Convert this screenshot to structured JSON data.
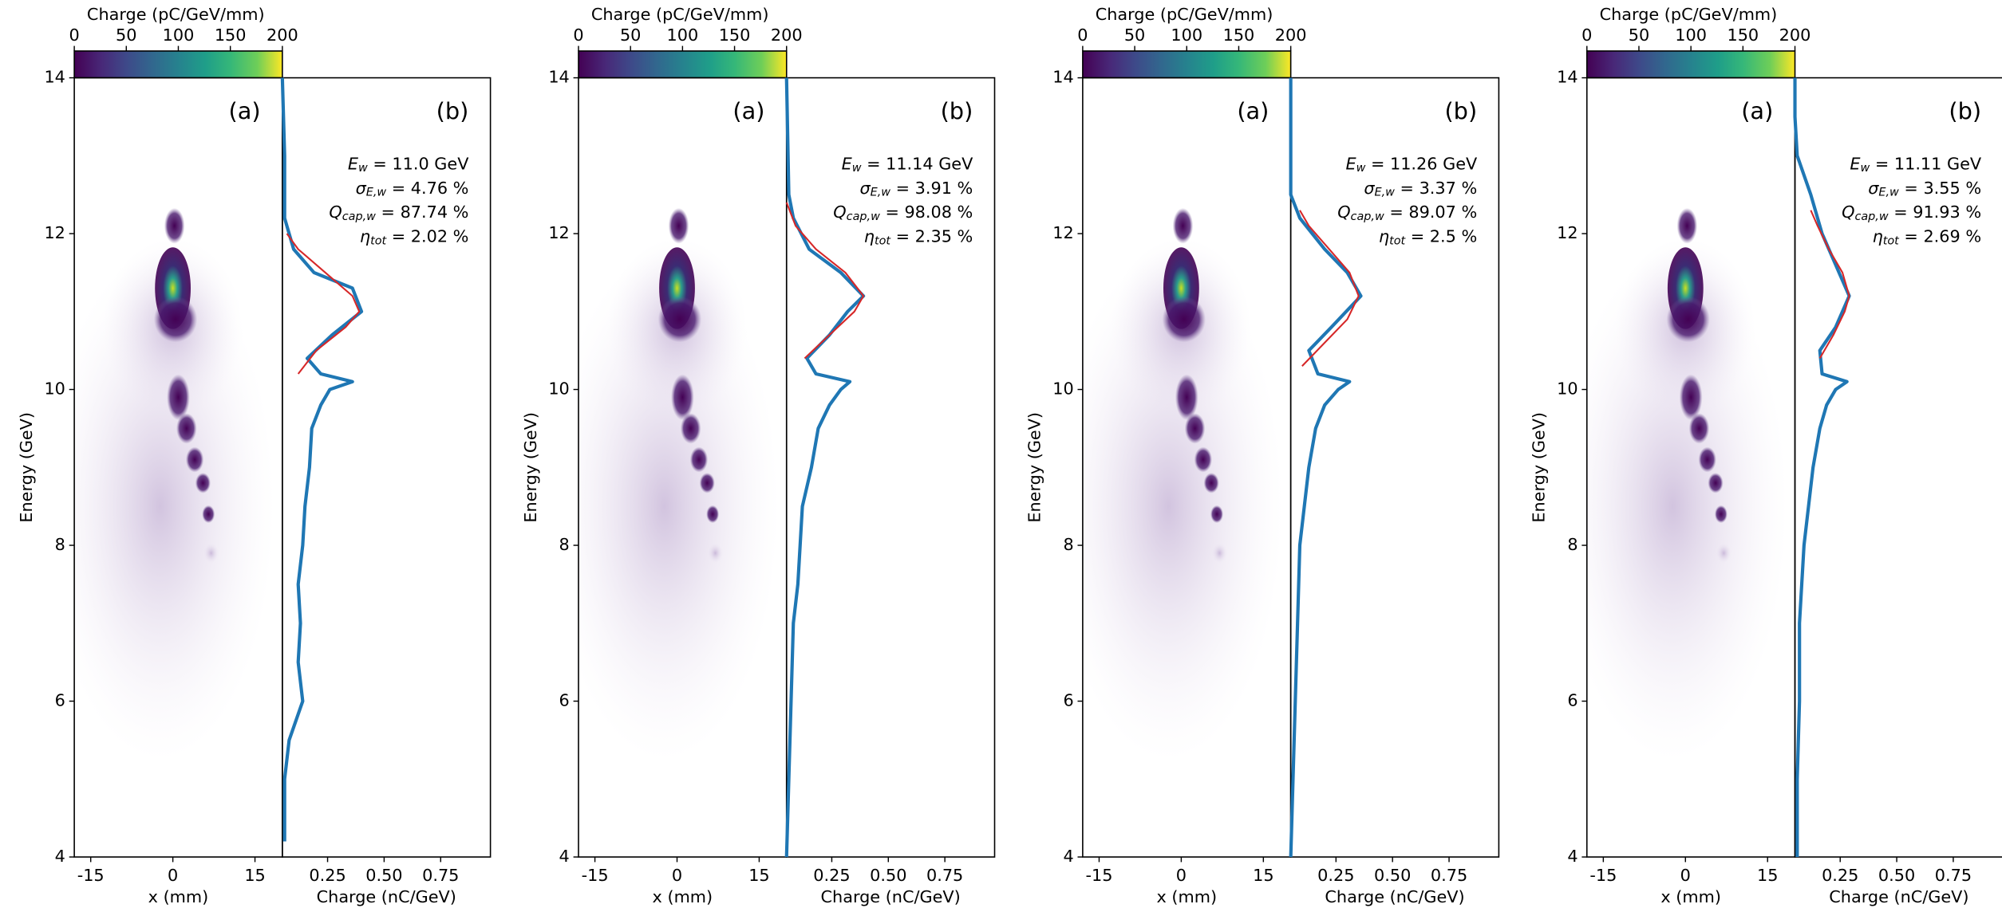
{
  "chart_data": [
    {
      "type": "line",
      "colorbar": {
        "label": "Charge (pC/GeV/mm)",
        "lim": [
          0,
          200
        ],
        "ticks": [
          0,
          50,
          100,
          150,
          200
        ]
      },
      "image": {
        "label": "(a)",
        "xlabel": "x (mm)",
        "xlim": [
          -18,
          20
        ],
        "xticks": [
          -15,
          0,
          15
        ],
        "ylabel": "Energy (GeV)",
        "ylim": [
          4,
          14
        ],
        "yticks": [
          4,
          6,
          8,
          10,
          12,
          14
        ]
      },
      "spectrum": {
        "label": "(b)",
        "xlabel": "Charge (nC/GeV)",
        "xlim": [
          0.05,
          0.97
        ],
        "ylim": [
          4,
          14
        ],
        "xticks": [
          {
            "value": 0.25,
            "label": "0.25"
          },
          {
            "value": 0.5,
            "label": "0.50"
          },
          {
            "value": 0.75,
            "label": "0.75"
          }
        ],
        "series": [
          {
            "color": "#1f77b4",
            "x": [
              4.2,
              5,
              5.5,
              6,
              6.5,
              7,
              7.5,
              8,
              8.5,
              9,
              9.5,
              9.8,
              10,
              10.1,
              10.2,
              10.4,
              10.7,
              11,
              11.3,
              11.5,
              11.8,
              12.2,
              13,
              14
            ],
            "values": [
              0.06,
              0.06,
              0.08,
              0.14,
              0.12,
              0.13,
              0.12,
              0.14,
              0.15,
              0.17,
              0.18,
              0.22,
              0.26,
              0.36,
              0.22,
              0.16,
              0.27,
              0.4,
              0.36,
              0.19,
              0.1,
              0.06,
              0.06,
              0.05
            ]
          },
          {
            "color": "#d62728",
            "x": [
              10.2,
              10.5,
              10.8,
              11,
              11.2,
              11.5,
              11.8,
              12
            ],
            "values": [
              0.12,
              0.2,
              0.33,
              0.39,
              0.36,
              0.24,
              0.12,
              0.07
            ]
          }
        ],
        "annotations": [
          {
            "symbol": "E",
            "sub": "w",
            "text": " = 11.0 GeV"
          },
          {
            "symbol": "σ",
            "sub": "E,w",
            "text": " = 4.76 %"
          },
          {
            "symbol": "Q",
            "sub": "cap,w",
            "text": " = 87.74 %"
          },
          {
            "symbol": "η",
            "sub": "tot",
            "text": " = 2.02 %"
          }
        ]
      }
    },
    {
      "type": "line",
      "colorbar": {
        "label": "Charge (pC/GeV/mm)",
        "lim": [
          0,
          200
        ],
        "ticks": [
          0,
          50,
          100,
          150,
          200
        ]
      },
      "image": {
        "label": "(a)",
        "xlabel": "x (mm)",
        "xlim": [
          -18,
          20
        ],
        "xticks": [
          -15,
          0,
          15
        ],
        "ylabel": "Energy (GeV)",
        "ylim": [
          4,
          14
        ],
        "yticks": [
          4,
          6,
          8,
          10,
          12,
          14
        ]
      },
      "spectrum": {
        "label": "(b)",
        "xlabel": "Charge (nC/GeV)",
        "xlim": [
          0.05,
          0.97
        ],
        "ylim": [
          4,
          14
        ],
        "xticks": [
          {
            "value": 0.25,
            "label": "0.25"
          },
          {
            "value": 0.5,
            "label": "0.50"
          },
          {
            "value": 0.75,
            "label": "0.75"
          }
        ],
        "series": [
          {
            "color": "#1f77b4",
            "x": [
              4,
              5,
              6,
              7,
              7.5,
              8,
              8.5,
              9,
              9.5,
              9.8,
              10,
              10.1,
              10.2,
              10.4,
              10.7,
              11,
              11.2,
              11.5,
              11.8,
              12.2,
              12.5,
              14
            ],
            "values": [
              0.05,
              0.06,
              0.07,
              0.08,
              0.1,
              0.11,
              0.12,
              0.16,
              0.19,
              0.24,
              0.29,
              0.33,
              0.18,
              0.14,
              0.24,
              0.32,
              0.39,
              0.29,
              0.15,
              0.08,
              0.06,
              0.05
            ]
          },
          {
            "color": "#d62728",
            "x": [
              10.4,
              10.7,
              11,
              11.2,
              11.5,
              11.8,
              12.1,
              12.4
            ],
            "values": [
              0.13,
              0.24,
              0.35,
              0.39,
              0.31,
              0.18,
              0.09,
              0.05
            ]
          }
        ],
        "annotations": [
          {
            "symbol": "E",
            "sub": "w",
            "text": " = 11.14 GeV"
          },
          {
            "symbol": "σ",
            "sub": "E,w",
            "text": " = 3.91 %"
          },
          {
            "symbol": "Q",
            "sub": "cap,w",
            "text": " = 98.08 %"
          },
          {
            "symbol": "η",
            "sub": "tot",
            "text": " = 2.35 %"
          }
        ]
      }
    },
    {
      "type": "line",
      "colorbar": {
        "label": "Charge (pC/GeV/mm)",
        "lim": [
          0,
          200
        ],
        "ticks": [
          0,
          50,
          100,
          150,
          200
        ]
      },
      "image": {
        "label": "(a)",
        "xlabel": "x (mm)",
        "xlim": [
          -18,
          20
        ],
        "xticks": [
          -15,
          0,
          15
        ],
        "ylabel": "Energy (GeV)",
        "ylim": [
          4,
          14
        ],
        "yticks": [
          4,
          6,
          8,
          10,
          12,
          14
        ]
      },
      "spectrum": {
        "label": "(b)",
        "xlabel": "Charge (nC/GeV)",
        "xlim": [
          0.05,
          0.97
        ],
        "ylim": [
          4,
          14
        ],
        "xticks": [
          {
            "value": 0.25,
            "label": "0.25"
          },
          {
            "value": 0.5,
            "label": "0.50"
          },
          {
            "value": 0.75,
            "label": "0.75"
          }
        ],
        "series": [
          {
            "color": "#1f77b4",
            "x": [
              4,
              5,
              6,
              7,
              8,
              8.5,
              9,
              9.5,
              9.8,
              10,
              10.1,
              10.2,
              10.5,
              10.8,
              11.2,
              11.5,
              11.8,
              12.2,
              12.5,
              14
            ],
            "values": [
              0.05,
              0.06,
              0.07,
              0.08,
              0.09,
              0.11,
              0.13,
              0.16,
              0.2,
              0.26,
              0.31,
              0.17,
              0.13,
              0.23,
              0.36,
              0.3,
              0.2,
              0.09,
              0.05,
              0.05
            ]
          },
          {
            "color": "#d62728",
            "x": [
              10.3,
              10.6,
              10.9,
              11.2,
              11.5,
              11.8,
              12.1,
              12.3
            ],
            "values": [
              0.1,
              0.2,
              0.3,
              0.35,
              0.31,
              0.22,
              0.13,
              0.09
            ]
          }
        ],
        "annotations": [
          {
            "symbol": "E",
            "sub": "w",
            "text": " = 11.26 GeV"
          },
          {
            "symbol": "σ",
            "sub": "E,w",
            "text": " = 3.37 %"
          },
          {
            "symbol": "Q",
            "sub": "cap,w",
            "text": " = 89.07 %"
          },
          {
            "symbol": "η",
            "sub": "tot",
            "text": " = 2.5 %"
          }
        ]
      }
    },
    {
      "type": "line",
      "colorbar": {
        "label": "Charge (pC/GeV/mm)",
        "lim": [
          0,
          200
        ],
        "ticks": [
          0,
          50,
          100,
          150,
          200
        ]
      },
      "image": {
        "label": "(a)",
        "xlabel": "x (mm)",
        "xlim": [
          -18,
          20
        ],
        "xticks": [
          -15,
          0,
          15
        ],
        "ylabel": "Energy (GeV)",
        "ylim": [
          4,
          14
        ],
        "yticks": [
          4,
          6,
          8,
          10,
          12,
          14
        ]
      },
      "spectrum": {
        "label": "(b)",
        "xlabel": "Charge (nC/GeV)",
        "xlim": [
          0.05,
          0.97
        ],
        "ylim": [
          4,
          14
        ],
        "xticks": [
          {
            "value": 0.25,
            "label": "0.25"
          },
          {
            "value": 0.5,
            "label": "0.50"
          },
          {
            "value": 0.75,
            "label": "0.75"
          }
        ],
        "series": [
          {
            "color": "#1f77b4",
            "x": [
              4,
              5,
              6,
              7,
              8,
              8.5,
              9,
              9.5,
              9.8,
              10,
              10.1,
              10.2,
              10.5,
              10.8,
              11.2,
              11.6,
              12,
              12.5,
              13,
              13.5,
              14
            ],
            "values": [
              0.06,
              0.06,
              0.07,
              0.07,
              0.09,
              0.11,
              0.13,
              0.16,
              0.19,
              0.23,
              0.28,
              0.17,
              0.16,
              0.23,
              0.29,
              0.23,
              0.17,
              0.12,
              0.06,
              0.05,
              0.05
            ]
          },
          {
            "color": "#d62728",
            "x": [
              10.4,
              10.7,
              11,
              11.2,
              11.5,
              11.8,
              12.1,
              12.3
            ],
            "values": [
              0.16,
              0.22,
              0.27,
              0.29,
              0.26,
              0.2,
              0.15,
              0.12
            ]
          }
        ],
        "annotations": [
          {
            "symbol": "E",
            "sub": "w",
            "text": " = 11.11 GeV"
          },
          {
            "symbol": "σ",
            "sub": "E,w",
            "text": " = 3.55 %"
          },
          {
            "symbol": "Q",
            "sub": "cap,w",
            "text": " = 91.93 %"
          },
          {
            "symbol": "η",
            "sub": "tot",
            "text": " = 2.69 %"
          }
        ]
      }
    }
  ]
}
